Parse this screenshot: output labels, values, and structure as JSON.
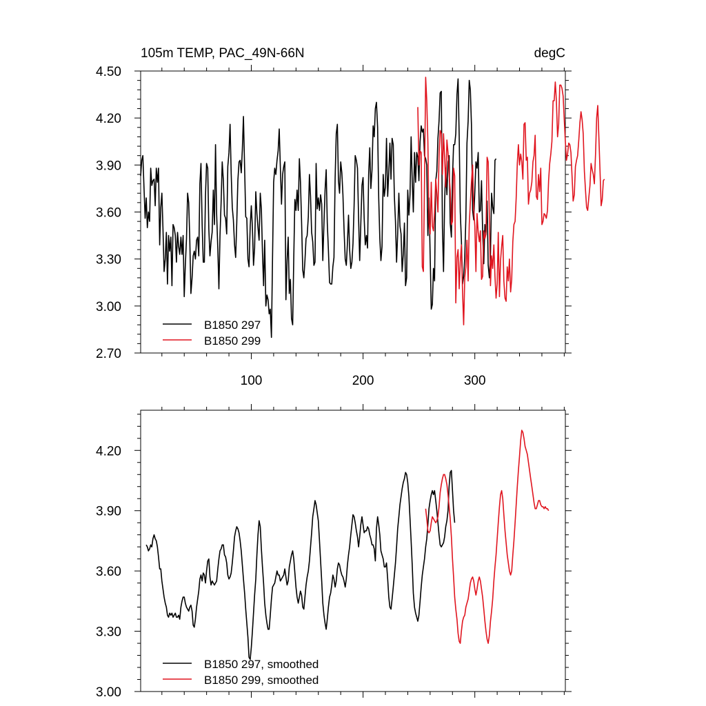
{
  "chart_data": [
    {
      "type": "line",
      "title": "105m TEMP, PAC_49N-66N",
      "units": "degC",
      "xlabel": "",
      "ylabel": "",
      "xlim": [
        1,
        381
      ],
      "ylim": [
        2.7,
        4.5
      ],
      "xticks": [
        100,
        200,
        300
      ],
      "xtick_labels": [
        "100",
        "200",
        "300"
      ],
      "yticks": [
        2.7,
        3.0,
        3.3,
        3.6,
        3.9,
        4.2,
        4.5
      ],
      "ytick_labels": [
        "2.70",
        "3.00",
        "3.30",
        "3.60",
        "3.90",
        "4.20",
        "4.50"
      ],
      "legend": {
        "position": "bottom-left"
      },
      "series": [
        {
          "name": "B1850 297",
          "color": "#000000",
          "x_start": 1,
          "values": [
            3.83,
            3.93,
            3.96,
            3.75,
            3.56,
            3.69,
            3.5,
            3.6,
            3.54,
            3.88,
            3.77,
            3.8,
            3.81,
            3.64,
            3.88,
            3.79,
            3.88,
            3.39,
            3.63,
            3.72,
            3.49,
            3.22,
            3.3,
            3.47,
            3.14,
            3.45,
            3.35,
            3.44,
            3.13,
            3.52,
            3.5,
            3.45,
            3.28,
            3.47,
            3.38,
            3.33,
            3.44,
            3.33,
            3.45,
            3.06,
            3.26,
            3.43,
            3.72,
            3.66,
            3.42,
            3.08,
            3.18,
            3.32,
            3.35,
            3.3,
            3.42,
            3.44,
            3.32,
            3.78,
            3.91,
            3.52,
            3.28,
            3.28,
            3.7,
            3.91,
            3.88,
            3.49,
            3.32,
            3.41,
            3.47,
            3.74,
            3.52,
            4.03,
            3.59,
            3.37,
            3.11,
            3.45,
            3.66,
            3.92,
            3.8,
            3.58,
            3.56,
            3.46,
            3.89,
            3.98,
            4.16,
            3.85,
            3.63,
            3.55,
            3.39,
            3.31,
            3.53,
            3.8,
            3.92,
            3.93,
            3.85,
            4.0,
            4.21,
            3.88,
            3.57,
            3.56,
            3.3,
            3.25,
            3.51,
            3.64,
            3.5,
            3.26,
            3.37,
            3.73,
            3.59,
            3.5,
            3.42,
            3.72,
            3.62,
            3.34,
            3.13,
            3.42,
            3.0,
            3.07,
            3.04,
            2.95,
            2.98,
            2.8,
            3.31,
            3.79,
            3.88,
            3.84,
            3.93,
            3.99,
            4.13,
            3.89,
            3.65,
            3.84,
            3.89,
            3.92,
            3.04,
            3.29,
            3.44,
            3.08,
            3.17,
            2.92,
            2.88,
            3.31,
            3.68,
            3.61,
            3.74,
            3.61,
            3.94,
            3.79,
            3.54,
            3.23,
            3.18,
            3.29,
            3.43,
            3.45,
            3.57,
            3.84,
            3.7,
            3.47,
            3.41,
            3.26,
            3.28,
            3.91,
            3.62,
            3.69,
            3.61,
            3.71,
            3.65,
            3.29,
            3.53,
            3.74,
            3.87,
            3.53,
            3.36,
            3.15,
            3.14,
            3.14,
            3.25,
            3.31,
            3.82,
            4.1,
            4.16,
            3.8,
            3.72,
            3.92,
            3.85,
            3.71,
            3.49,
            3.3,
            3.26,
            3.4,
            3.58,
            3.36,
            3.24,
            3.28,
            3.4,
            3.64,
            3.96,
            3.93,
            3.88,
            3.56,
            3.29,
            3.52,
            3.77,
            3.82,
            3.56,
            3.39,
            3.45,
            3.37,
            3.84,
            4.01,
            3.75,
            3.87,
            4.15,
            4.08,
            4.26,
            4.3,
            4.14,
            3.69,
            3.43,
            3.29,
            3.38,
            3.84,
            3.7,
            3.76,
            4.07,
            3.7,
            3.85,
            4.04,
            3.81,
            4.07,
            4.03,
            3.7,
            3.54,
            3.28,
            3.46,
            3.72,
            3.51,
            3.46,
            3.22,
            3.33,
            3.53,
            3.13,
            3.18,
            3.74,
            3.58,
            3.71,
            4.08,
            3.8,
            3.6,
            3.98,
            3.79,
            3.98,
            3.95,
            3.8,
            4.05,
            4.15,
            4.11,
            4.13,
            3.96,
            3.94,
            3.9,
            3.45,
            3.69,
            3.33,
            2.98,
            3.01,
            3.24,
            3.16,
            3.8,
            3.86,
            4.07,
            4.18,
            4.36,
            4.37,
            3.5,
            3.22,
            3.67,
            3.88,
            3.71,
            3.92,
            3.96,
            3.53,
            3.44,
            3.82,
            4.03,
            4.03,
            4.1,
            4.35,
            4.45,
            4.09,
            3.6,
            3.42,
            3.14,
            3.19,
            3.31,
            3.56,
            4.04,
            4.18,
            4.44,
            4.38,
            4.16,
            3.61,
            3.55,
            3.73,
            3.92,
            3.88,
            3.98,
            3.6,
            3.61,
            3.8,
            3.48,
            3.27,
            3.52,
            3.47,
            3.67,
            3.26,
            3.18,
            3.33,
            3.72,
            3.63,
            3.59,
            3.93,
            3.94
          ]
        },
        {
          "name": "B1850 299",
          "color": "#e0141e",
          "x_start": 249,
          "values": [
            4.27,
            3.9,
            3.99,
            3.98,
            3.25,
            3.22,
            3.79,
            4.46,
            4.31,
            4.05,
            3.53,
            3.46,
            3.79,
            3.51,
            3.48,
            3.6,
            3.81,
            3.72,
            3.6,
            3.96,
            4.12,
            4.1,
            3.84,
            4.1,
            3.95,
            3.76,
            4.06,
            3.98,
            3.84,
            3.74,
            3.52,
            3.54,
            3.88,
            3.83,
            3.02,
            3.31,
            3.36,
            3.11,
            3.28,
            3.39,
            3.09,
            2.88,
            3.18,
            3.25,
            3.42,
            3.16,
            3.52,
            3.66,
            3.79,
            3.9,
            3.62,
            3.51,
            3.22,
            3.59,
            3.47,
            3.41,
            3.48,
            3.17,
            3.19,
            3.48,
            3.43,
            3.46,
            3.95,
            3.92,
            3.57,
            3.13,
            3.32,
            3.24,
            3.39,
            3.19,
            3.05,
            3.14,
            3.47,
            3.06,
            3.29,
            3.38,
            3.45,
            3.16,
            3.05,
            3.03,
            3.25,
            3.16,
            3.3,
            3.09,
            3.17,
            3.41,
            3.52,
            3.54,
            3.69,
            3.91,
            4.03,
            3.9,
            3.97,
            3.92,
            3.81,
            4.16,
            4.17,
            3.93,
            3.95,
            3.65,
            3.72,
            3.74,
            3.79,
            3.92,
            3.96,
            4.09,
            3.7,
            3.68,
            3.84,
            3.73,
            3.88,
            3.52,
            3.54,
            3.59,
            3.58,
            3.56,
            3.61,
            3.8,
            3.91,
            3.97,
            4.05,
            4.31,
            4.31,
            4.43,
            4.31,
            4.08,
            4.16,
            4.41,
            4.41,
            4.39,
            4.34,
            4.19,
            4.05,
            3.93,
            3.97,
            4.04,
            4.03,
            3.98,
            3.83,
            3.67,
            3.71,
            3.89,
            3.93,
            3.96,
            4.06,
            4.17,
            4.24,
            4.19,
            4.1,
            3.86,
            3.74,
            3.63,
            3.61,
            3.69,
            3.77,
            3.91,
            3.87,
            3.84,
            3.78,
            3.97,
            4.2,
            4.28,
            4.08,
            3.86,
            3.64,
            3.68,
            3.8,
            3.81
          ]
        }
      ]
    },
    {
      "type": "line",
      "title": "",
      "xlabel": "",
      "ylabel": "",
      "xlim": [
        1,
        381
      ],
      "ylim": [
        3.0,
        4.4
      ],
      "xticks": [
        100,
        200,
        300
      ],
      "xtick_labels": [],
      "yticks": [
        3.0,
        3.3,
        3.6,
        3.9,
        4.2
      ],
      "ytick_labels": [
        "3.00",
        "3.30",
        "3.60",
        "3.90",
        "4.20"
      ],
      "legend": {
        "position": "bottom-left"
      },
      "series": [
        {
          "name": "B1850 297, smoothed",
          "color": "#000000",
          "x_start": 6,
          "values": [
            3.73,
            3.72,
            3.7,
            3.71,
            3.73,
            3.72,
            3.76,
            3.78,
            3.76,
            3.75,
            3.72,
            3.67,
            3.61,
            3.61,
            3.55,
            3.51,
            3.47,
            3.44,
            3.42,
            3.38,
            3.37,
            3.39,
            3.38,
            3.39,
            3.37,
            3.38,
            3.39,
            3.37,
            3.37,
            3.38,
            3.36,
            3.42,
            3.45,
            3.47,
            3.47,
            3.44,
            3.42,
            3.41,
            3.4,
            3.42,
            3.43,
            3.4,
            3.33,
            3.32,
            3.36,
            3.42,
            3.46,
            3.5,
            3.56,
            3.58,
            3.55,
            3.59,
            3.58,
            3.54,
            3.6,
            3.65,
            3.66,
            3.57,
            3.53,
            3.55,
            3.54,
            3.53,
            3.54,
            3.55,
            3.61,
            3.66,
            3.7,
            3.71,
            3.73,
            3.73,
            3.68,
            3.67,
            3.64,
            3.58,
            3.56,
            3.57,
            3.59,
            3.64,
            3.7,
            3.77,
            3.8,
            3.82,
            3.81,
            3.79,
            3.75,
            3.7,
            3.63,
            3.56,
            3.49,
            3.41,
            3.34,
            3.27,
            3.17,
            3.16,
            3.22,
            3.3,
            3.39,
            3.48,
            3.56,
            3.68,
            3.78,
            3.85,
            3.82,
            3.71,
            3.62,
            3.54,
            3.44,
            3.38,
            3.34,
            3.31,
            3.31,
            3.38,
            3.46,
            3.52,
            3.53,
            3.54,
            3.57,
            3.6,
            3.58,
            3.58,
            3.55,
            3.56,
            3.57,
            3.58,
            3.61,
            3.57,
            3.53,
            3.55,
            3.62,
            3.65,
            3.68,
            3.7,
            3.66,
            3.59,
            3.52,
            3.47,
            3.44,
            3.47,
            3.5,
            3.48,
            3.42,
            3.41,
            3.47,
            3.53,
            3.57,
            3.6,
            3.65,
            3.72,
            3.79,
            3.87,
            3.91,
            3.95,
            3.93,
            3.89,
            3.85,
            3.75,
            3.65,
            3.55,
            3.44,
            3.38,
            3.34,
            3.31,
            3.36,
            3.42,
            3.47,
            3.49,
            3.53,
            3.58,
            3.56,
            3.52,
            3.55,
            3.61,
            3.64,
            3.63,
            3.6,
            3.58,
            3.57,
            3.55,
            3.52,
            3.56,
            3.63,
            3.68,
            3.72,
            3.78,
            3.83,
            3.88,
            3.87,
            3.84,
            3.8,
            3.77,
            3.72,
            3.77,
            3.83,
            3.87,
            3.83,
            3.79,
            3.8,
            3.8,
            3.82,
            3.81,
            3.78,
            3.76,
            3.73,
            3.73,
            3.71,
            3.65,
            3.81,
            3.87,
            3.83,
            3.78,
            3.7,
            3.68,
            3.66,
            3.62,
            3.62,
            3.64,
            3.56,
            3.47,
            3.42,
            3.41,
            3.46,
            3.52,
            3.58,
            3.64,
            3.72,
            3.81,
            3.87,
            3.93,
            3.97,
            4.01,
            4.04,
            4.06,
            4.09,
            4.08,
            4.04,
            3.97,
            3.86,
            3.75,
            3.63,
            3.49,
            3.42,
            3.39,
            3.37,
            3.35,
            3.38,
            3.45,
            3.52,
            3.58,
            3.62,
            3.66,
            3.72,
            3.76,
            3.83,
            3.91,
            3.95,
            3.98,
            4.0,
            3.98,
            4.0,
            3.95,
            3.9,
            3.84,
            3.78,
            3.73,
            3.72,
            3.73,
            3.74,
            3.77,
            3.82,
            3.85,
            3.9,
            4.02,
            4.09,
            4.1,
            4.0,
            3.9,
            3.84
          ]
        },
        {
          "name": "B1850 299, smoothed",
          "color": "#e0141e",
          "x_start": 256,
          "values": [
            3.91,
            3.86,
            3.8,
            3.79,
            3.8,
            3.84,
            3.87,
            3.86,
            3.85,
            3.84,
            3.85,
            3.87,
            3.92,
            3.99,
            4.03,
            4.06,
            4.08,
            4.08,
            4.06,
            4.03,
            3.98,
            3.92,
            3.86,
            3.77,
            3.66,
            3.57,
            3.47,
            3.41,
            3.36,
            3.29,
            3.25,
            3.24,
            3.3,
            3.35,
            3.37,
            3.38,
            3.42,
            3.44,
            3.46,
            3.5,
            3.54,
            3.56,
            3.57,
            3.55,
            3.51,
            3.48,
            3.51,
            3.55,
            3.57,
            3.55,
            3.51,
            3.47,
            3.41,
            3.35,
            3.3,
            3.26,
            3.24,
            3.28,
            3.35,
            3.4,
            3.46,
            3.55,
            3.62,
            3.68,
            3.76,
            3.84,
            3.92,
            3.98,
            4.0,
            3.96,
            3.88,
            3.8,
            3.74,
            3.68,
            3.64,
            3.6,
            3.58,
            3.6,
            3.68,
            3.75,
            3.84,
            3.93,
            4.02,
            4.1,
            4.17,
            4.25,
            4.3,
            4.29,
            4.26,
            4.22,
            4.2,
            4.18,
            4.14,
            4.1,
            4.06,
            4.02,
            3.98,
            3.94,
            3.91,
            3.91,
            3.93,
            3.95,
            3.95,
            3.93,
            3.92,
            3.92,
            3.91,
            3.92,
            3.91,
            3.91,
            3.9
          ]
        }
      ]
    }
  ]
}
